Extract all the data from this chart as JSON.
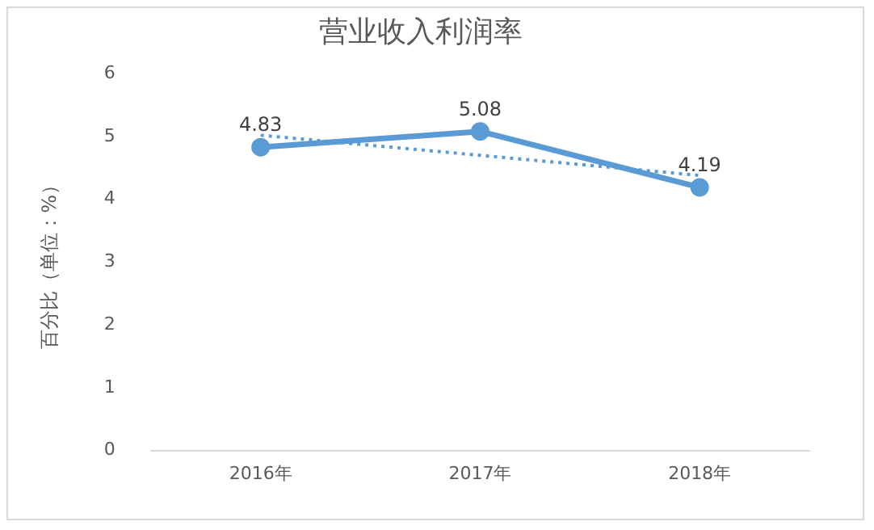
{
  "chart_data": {
    "type": "line",
    "title": "营业收入利润率",
    "ylabel": "百分比（单位：%）",
    "categories": [
      "2016年",
      "2017年",
      "2018年"
    ],
    "series": [
      {
        "color": "#5b9bd5",
        "values": [
          4.83,
          5.08,
          4.19
        ],
        "value_labels": [
          "4.83",
          "5.08",
          "4.19"
        ],
        "marker": "circle",
        "line_style": "solid"
      },
      {
        "type": "line",
        "x": [
          "2016年",
          "2017年",
          "2018年"
        ],
        "color": "#5b9bd5",
        "values": [
          5.02,
          4.7,
          4.38
        ],
        "marker": "none",
        "line_style": "dotted"
      }
    ],
    "ylim": [
      0,
      6
    ],
    "yticks": [
      0,
      1,
      2,
      3,
      4,
      5,
      6
    ],
    "grid": false,
    "legend": false
  }
}
